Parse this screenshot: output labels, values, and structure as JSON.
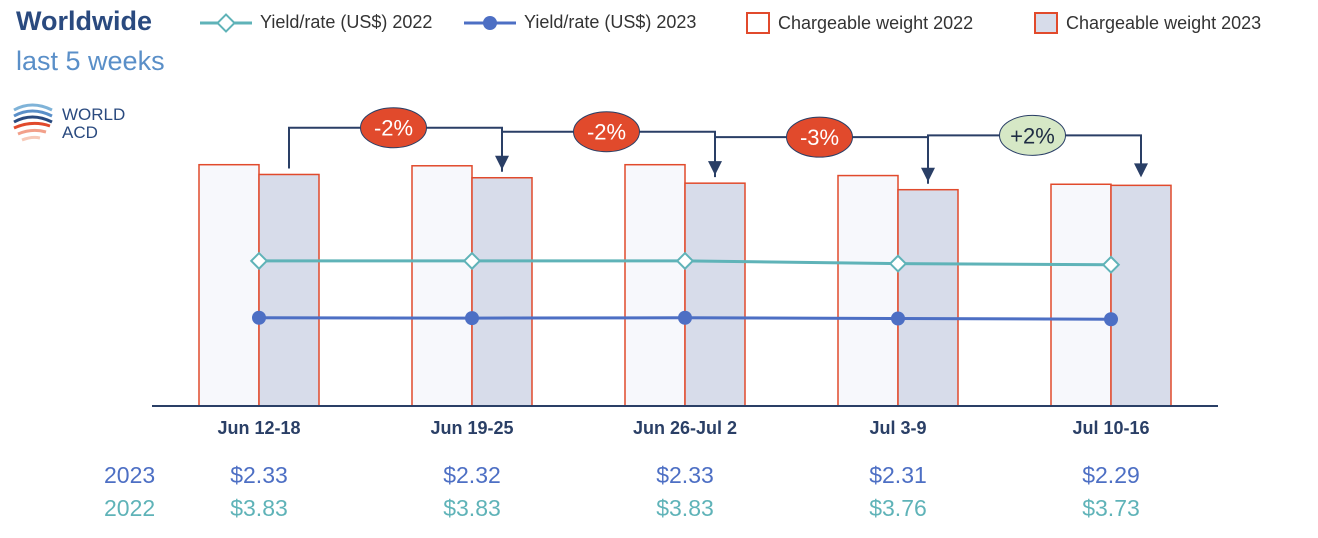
{
  "header": {
    "title": "Worldwide",
    "subtitle": "last 5 weeks"
  },
  "logo": {
    "line1": "WORLD",
    "line2": "ACD"
  },
  "legend": [
    {
      "label": "Yield/rate (US$) 2022",
      "kind": "line-diamond",
      "color": "#5fb3b8"
    },
    {
      "label": "Yield/rate (US$) 2023",
      "kind": "line-dot",
      "color": "#4d6fc4"
    },
    {
      "label": "Chargeable weight 2022",
      "kind": "box",
      "fill": "#ffffff",
      "stroke": "#e14a2c"
    },
    {
      "label": "Chargeable weight 2023",
      "kind": "box",
      "fill": "#d7dcea",
      "stroke": "#e14a2c"
    }
  ],
  "chart_data": {
    "type": "bar",
    "categories": [
      "Jun 12-18",
      "Jun 19-25",
      "Jun 26-Jul 2",
      "Jul 3-9",
      "Jul 10-16"
    ],
    "ylim": [
      0,
      230
    ],
    "yield_ylim": [
      0,
      6.6
    ],
    "series": [
      {
        "name": "Chargeable weight 2022",
        "kind": "bar",
        "values": [
          222,
          221,
          222,
          212,
          204
        ],
        "fill": "#f7f8fc",
        "stroke": "#e14a2c"
      },
      {
        "name": "Chargeable weight 2023",
        "kind": "bar",
        "values": [
          213,
          210,
          205,
          199,
          203
        ],
        "fill": "#d7dcea",
        "stroke": "#e14a2c"
      },
      {
        "name": "Yield/rate (US$) 2022",
        "kind": "line",
        "marker": "diamond",
        "values": [
          3.83,
          3.83,
          3.83,
          3.76,
          3.73
        ],
        "color": "#5fb3b8"
      },
      {
        "name": "Yield/rate (US$) 2023",
        "kind": "line",
        "marker": "circle",
        "values": [
          2.33,
          2.32,
          2.33,
          2.31,
          2.29
        ],
        "color": "#4d6fc4"
      }
    ],
    "changes": [
      {
        "label": "-2%",
        "fill": "#e14a2c",
        "text": "#ffffff"
      },
      {
        "label": "-2%",
        "fill": "#e14a2c",
        "text": "#ffffff"
      },
      {
        "label": "-3%",
        "fill": "#e14a2c",
        "text": "#ffffff"
      },
      {
        "label": "+2%",
        "fill": "#d6e8c6",
        "text": "#1f2d44"
      }
    ],
    "grid": false,
    "legend_position": "top"
  },
  "table": {
    "year_2023": "2023",
    "year_2022": "2022",
    "values_2023": [
      "$2.33",
      "$2.32",
      "$2.33",
      "$2.31",
      "$2.29"
    ],
    "values_2022": [
      "$3.83",
      "$3.83",
      "$3.83",
      "$3.76",
      "$3.73"
    ],
    "color_2023": "#4d6fc4",
    "color_2022": "#5fb3b8"
  }
}
